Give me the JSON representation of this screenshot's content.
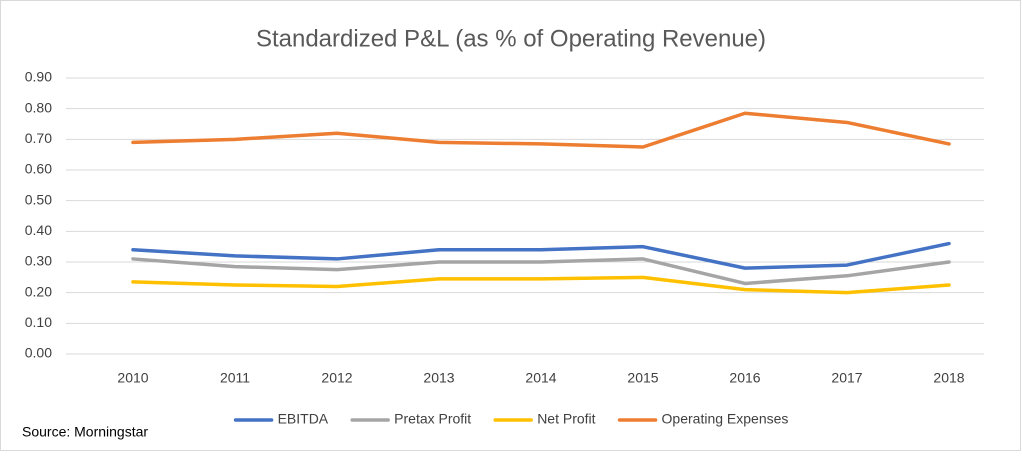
{
  "chart_data": {
    "type": "line",
    "title": "Standardized P&L (as % of Operating Revenue)",
    "categories": [
      "2010",
      "2011",
      "2012",
      "2013",
      "2014",
      "2015",
      "2016",
      "2017",
      "2018"
    ],
    "series": [
      {
        "name": "EBITDA",
        "color": "#4472c4",
        "values": [
          0.34,
          0.32,
          0.31,
          0.34,
          0.34,
          0.35,
          0.28,
          0.29,
          0.36
        ]
      },
      {
        "name": "Pretax Profit",
        "color": "#a5a5a5",
        "values": [
          0.31,
          0.285,
          0.275,
          0.3,
          0.3,
          0.31,
          0.23,
          0.255,
          0.3
        ]
      },
      {
        "name": "Net Profit",
        "color": "#ffc000",
        "values": [
          0.235,
          0.225,
          0.22,
          0.245,
          0.245,
          0.25,
          0.21,
          0.2,
          0.225
        ]
      },
      {
        "name": "Operating Expenses",
        "color": "#ed7d31",
        "values": [
          0.69,
          0.7,
          0.72,
          0.69,
          0.685,
          0.675,
          0.785,
          0.755,
          0.685
        ]
      }
    ],
    "ylim": [
      0,
      0.9
    ],
    "yticks": [
      {
        "value": 0,
        "label": "0.00"
      },
      {
        "value": 0.1,
        "label": "0.10"
      },
      {
        "value": 0.2,
        "label": "0.20"
      },
      {
        "value": 0.3,
        "label": "0.30"
      },
      {
        "value": 0.4,
        "label": "0.40"
      },
      {
        "value": 0.5,
        "label": "0.50"
      },
      {
        "value": 0.6,
        "label": "0.60"
      },
      {
        "value": 0.7,
        "label": "0.70"
      },
      {
        "value": 0.8,
        "label": "0.80"
      },
      {
        "value": 0.9,
        "label": "0.90"
      }
    ],
    "grid": true,
    "legend": "bottom",
    "source": "Source: Morningstar"
  }
}
